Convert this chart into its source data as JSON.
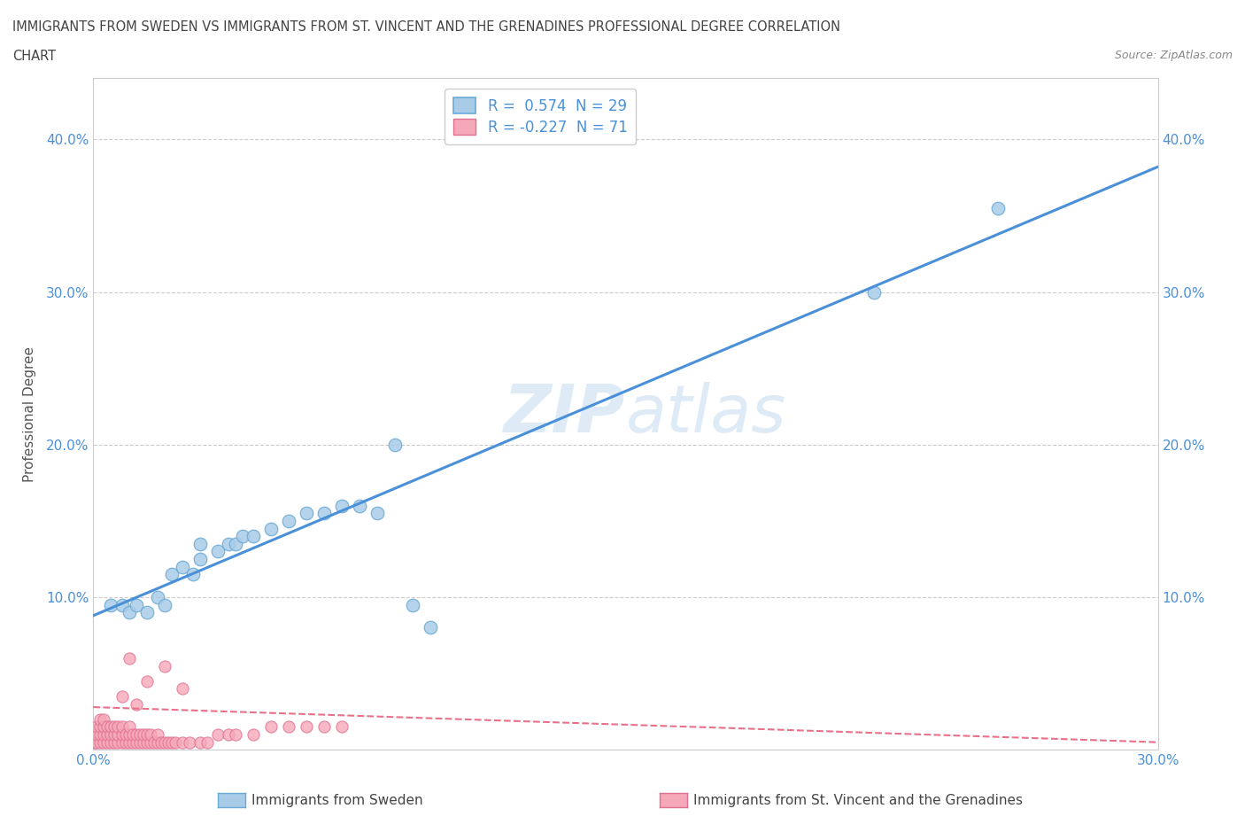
{
  "title_line1": "IMMIGRANTS FROM SWEDEN VS IMMIGRANTS FROM ST. VINCENT AND THE GRENADINES PROFESSIONAL DEGREE CORRELATION",
  "title_line2": "CHART",
  "source": "Source: ZipAtlas.com",
  "ylabel": "Professional Degree",
  "xlim": [
    0.0,
    0.3
  ],
  "ylim": [
    0.0,
    0.44
  ],
  "xticks": [
    0.0,
    0.05,
    0.1,
    0.15,
    0.2,
    0.25,
    0.3
  ],
  "xticklabels": [
    "0.0%",
    "",
    "",
    "",
    "",
    "",
    "30.0%"
  ],
  "yticks": [
    0.0,
    0.1,
    0.2,
    0.3,
    0.4
  ],
  "yticklabels_left": [
    "",
    "10.0%",
    "20.0%",
    "30.0%",
    "40.0%"
  ],
  "yticklabels_right": [
    "10.0%",
    "20.0%",
    "30.0%",
    "40.0%"
  ],
  "sweden_color": "#a8cce8",
  "svg_color": "#f5a8b8",
  "sweden_edge": "#6aaad4",
  "svg_edge": "#e07090",
  "sweden_R": 0.574,
  "sweden_N": 29,
  "svg_R": -0.227,
  "svg_N": 71,
  "sweden_line_color": "#4a90d9",
  "svg_line_color": "#e8708a",
  "sweden_line_x0": 0.0,
  "sweden_line_y0": 0.088,
  "sweden_line_x1": 0.3,
  "sweden_line_y1": 0.382,
  "svg_line_x0": 0.0,
  "svg_line_y0": 0.028,
  "svg_line_x1": 0.3,
  "svg_line_y1": 0.005,
  "watermark_text": "ZIPatlas",
  "legend_label_sweden": "Immigrants from Sweden",
  "legend_label_svg": "Immigrants from St. Vincent and the Grenadines",
  "sweden_x": [
    0.005,
    0.008,
    0.01,
    0.012,
    0.015,
    0.018,
    0.02,
    0.022,
    0.025,
    0.028,
    0.03,
    0.03,
    0.035,
    0.038,
    0.04,
    0.042,
    0.045,
    0.05,
    0.055,
    0.06,
    0.065,
    0.07,
    0.075,
    0.08,
    0.085,
    0.09,
    0.095,
    0.22,
    0.255
  ],
  "sweden_y": [
    0.095,
    0.095,
    0.09,
    0.095,
    0.09,
    0.1,
    0.095,
    0.115,
    0.12,
    0.115,
    0.125,
    0.135,
    0.13,
    0.135,
    0.135,
    0.14,
    0.14,
    0.145,
    0.15,
    0.155,
    0.155,
    0.16,
    0.16,
    0.155,
    0.2,
    0.095,
    0.08,
    0.3,
    0.355
  ],
  "svg_x": [
    0.0005,
    0.001,
    0.001,
    0.001,
    0.002,
    0.002,
    0.002,
    0.002,
    0.003,
    0.003,
    0.003,
    0.003,
    0.004,
    0.004,
    0.004,
    0.005,
    0.005,
    0.005,
    0.006,
    0.006,
    0.006,
    0.007,
    0.007,
    0.007,
    0.008,
    0.008,
    0.008,
    0.009,
    0.009,
    0.01,
    0.01,
    0.01,
    0.011,
    0.011,
    0.012,
    0.012,
    0.013,
    0.013,
    0.014,
    0.014,
    0.015,
    0.015,
    0.016,
    0.016,
    0.017,
    0.018,
    0.018,
    0.019,
    0.02,
    0.021,
    0.022,
    0.023,
    0.025,
    0.027,
    0.03,
    0.032,
    0.035,
    0.038,
    0.04,
    0.045,
    0.05,
    0.055,
    0.06,
    0.065,
    0.07,
    0.01,
    0.02,
    0.015,
    0.025,
    0.008,
    0.012
  ],
  "svg_y": [
    0.005,
    0.005,
    0.01,
    0.015,
    0.005,
    0.01,
    0.015,
    0.02,
    0.005,
    0.01,
    0.015,
    0.02,
    0.005,
    0.01,
    0.015,
    0.005,
    0.01,
    0.015,
    0.005,
    0.01,
    0.015,
    0.005,
    0.01,
    0.015,
    0.005,
    0.01,
    0.015,
    0.005,
    0.01,
    0.005,
    0.01,
    0.015,
    0.005,
    0.01,
    0.005,
    0.01,
    0.005,
    0.01,
    0.005,
    0.01,
    0.005,
    0.01,
    0.005,
    0.01,
    0.005,
    0.005,
    0.01,
    0.005,
    0.005,
    0.005,
    0.005,
    0.005,
    0.005,
    0.005,
    0.005,
    0.005,
    0.01,
    0.01,
    0.01,
    0.01,
    0.015,
    0.015,
    0.015,
    0.015,
    0.015,
    0.06,
    0.055,
    0.045,
    0.04,
    0.035,
    0.03
  ]
}
